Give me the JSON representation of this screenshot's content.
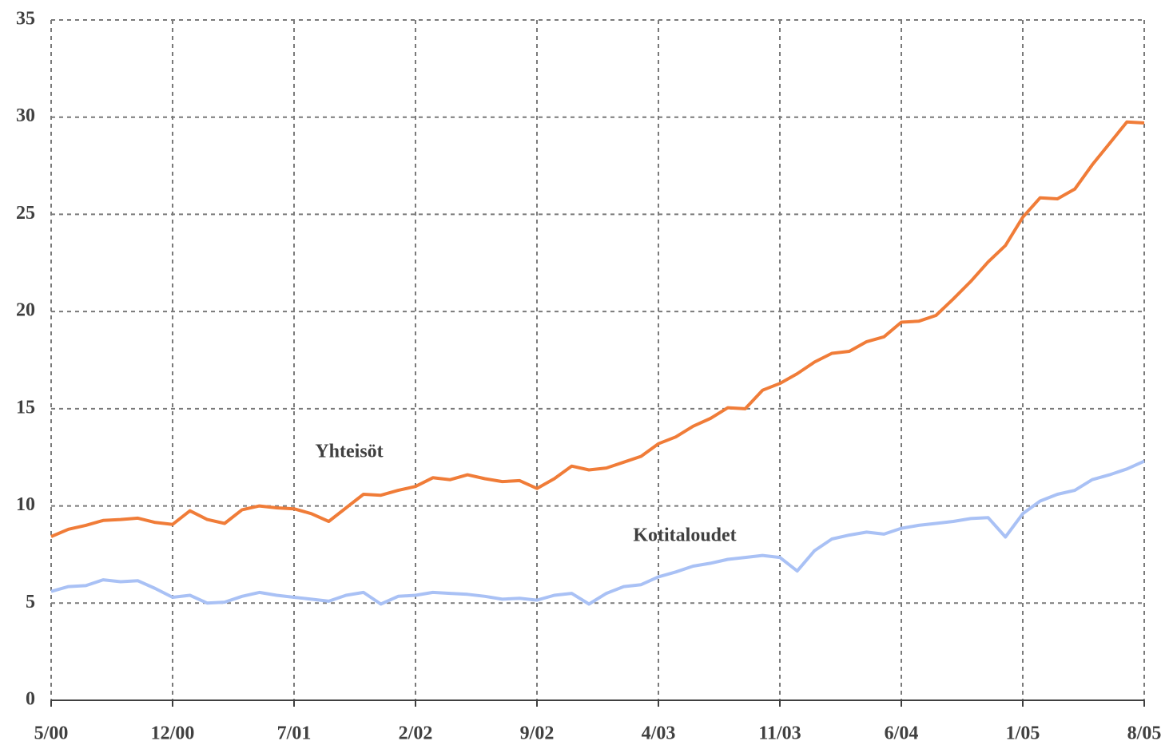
{
  "chart_data": {
    "type": "line",
    "categories": [
      "5/00",
      null,
      null,
      null,
      null,
      null,
      null,
      "12/00",
      null,
      null,
      null,
      null,
      null,
      null,
      "7/01",
      null,
      null,
      null,
      null,
      null,
      null,
      "2/02",
      null,
      null,
      null,
      null,
      null,
      null,
      "9/02",
      null,
      null,
      null,
      null,
      null,
      null,
      "4/03",
      null,
      null,
      null,
      null,
      null,
      null,
      "11/03",
      null,
      null,
      null,
      null,
      null,
      null,
      "6/04",
      null,
      null,
      null,
      null,
      null,
      null,
      "1/05",
      null,
      null,
      null,
      null,
      null,
      null,
      "8/05"
    ],
    "series": [
      {
        "name": "Yhteisöt",
        "color": "#f07c38",
        "values": [
          8.42,
          8.8,
          9.0,
          9.25,
          9.3,
          9.37,
          9.15,
          9.05,
          9.75,
          9.3,
          9.1,
          9.8,
          10.0,
          9.9,
          9.85,
          9.6,
          9.2,
          9.9,
          10.6,
          10.55,
          10.8,
          11.0,
          11.45,
          11.35,
          11.6,
          11.4,
          11.25,
          11.3,
          10.9,
          11.4,
          12.05,
          11.85,
          11.95,
          12.25,
          12.55,
          13.2,
          13.55,
          14.1,
          14.5,
          15.05,
          15.0,
          15.95,
          16.3,
          16.8,
          17.4,
          17.85,
          17.95,
          18.45,
          18.7,
          19.45,
          19.5,
          19.8,
          20.65,
          21.55,
          22.55,
          23.4,
          24.85,
          25.85,
          25.8,
          26.3,
          27.55,
          28.65,
          29.75,
          29.7
        ]
      },
      {
        "name": "Kotitaloudet",
        "color": "#a9c1f5",
        "values": [
          5.6,
          5.85,
          5.9,
          6.2,
          6.1,
          6.15,
          5.75,
          5.3,
          5.4,
          5.0,
          5.05,
          5.35,
          5.55,
          5.4,
          5.3,
          5.2,
          5.1,
          5.4,
          5.55,
          4.95,
          5.35,
          5.4,
          5.55,
          5.5,
          5.45,
          5.35,
          5.2,
          5.25,
          5.15,
          5.4,
          5.5,
          4.95,
          5.5,
          5.85,
          5.95,
          6.35,
          6.6,
          6.9,
          7.05,
          7.25,
          7.35,
          7.45,
          7.35,
          6.65,
          7.7,
          8.3,
          8.5,
          8.65,
          8.55,
          8.85,
          9.0,
          9.1,
          9.2,
          9.35,
          9.4,
          8.4,
          9.6,
          10.25,
          10.6,
          10.8,
          11.35,
          11.6,
          11.9,
          12.3
        ]
      }
    ],
    "ylim": [
      0,
      35
    ],
    "yticks": [
      0,
      5,
      10,
      15,
      20,
      25,
      30,
      35
    ],
    "grid": true
  }
}
